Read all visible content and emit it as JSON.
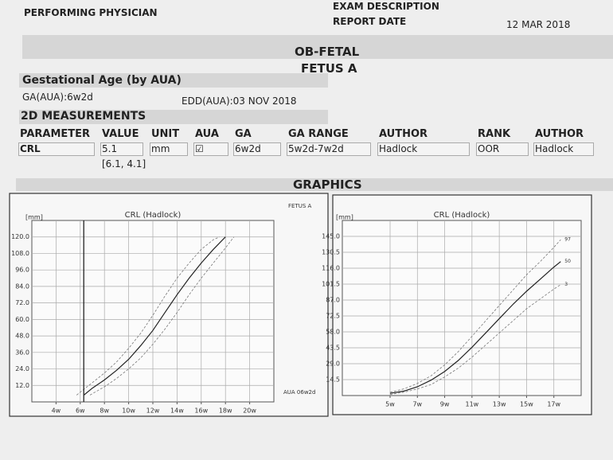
{
  "header": {
    "physician": "PERFORMING PHYSICIAN",
    "exam": "EXAM DESCRIPTION",
    "report_date_label": "REPORT DATE",
    "report_date": "12 MAR 2018"
  },
  "exam": {
    "title": "OB-FETAL",
    "fetus": "FETUS A"
  },
  "ga": {
    "heading": "Gestational Age (by AUA)",
    "ga": "GA(AUA):6w2d",
    "edd": "EDD(AUA):03 NOV 2018"
  },
  "measurements": {
    "heading": "2D MEASUREMENTS",
    "columns": [
      "PARAMETER",
      "VALUE",
      "UNIT",
      "AUA",
      "GA",
      "GA RANGE",
      "AUTHOR",
      "RANK",
      "AUTHOR"
    ],
    "rows": [
      [
        "CRL",
        "5.1",
        "mm",
        "☑",
        "6w2d",
        "5w2d-7w2d",
        "Hadlock",
        "OOR",
        "Hadlock"
      ]
    ],
    "range": "[6.1, 4.1]"
  },
  "graphics": {
    "title": "GRAPHICS"
  },
  "chart_data": [
    {
      "type": "line",
      "title": "CRL (Hadlock)",
      "y_label": "[mm]",
      "grid": true,
      "annotations": [
        "FETUS A",
        "AUA 06w2d"
      ],
      "aua_x": 6.29,
      "xlim": [
        2,
        22
      ],
      "ylim": [
        0,
        132
      ],
      "xticks": [
        {
          "value": 4,
          "label": "4w"
        },
        {
          "value": 6,
          "label": "6w"
        },
        {
          "value": 8,
          "label": "8w"
        },
        {
          "value": 10,
          "label": "10w"
        },
        {
          "value": 12,
          "label": "12w"
        },
        {
          "value": 14,
          "label": "14w"
        },
        {
          "value": 16,
          "label": "16w"
        },
        {
          "value": 18,
          "label": "18w"
        },
        {
          "value": 20,
          "label": "20w"
        }
      ],
      "yticks": [
        {
          "value": 12,
          "label": "12.0"
        },
        {
          "value": 24,
          "label": "24.0"
        },
        {
          "value": 36,
          "label": "36.0"
        },
        {
          "value": 48,
          "label": "48.0"
        },
        {
          "value": 60,
          "label": "60.0"
        },
        {
          "value": 72,
          "label": "72.0"
        },
        {
          "value": 84,
          "label": "84.0"
        },
        {
          "value": 96,
          "label": "96.0"
        },
        {
          "value": 108,
          "label": "108.0"
        },
        {
          "value": 120,
          "label": "120.0"
        }
      ],
      "series": [
        {
          "color": "#222222",
          "dash": false,
          "x": [
            6.3,
            7,
            8,
            9,
            10,
            11,
            12,
            13,
            14,
            15,
            16,
            17,
            18
          ],
          "values": [
            5,
            10,
            16,
            23,
            31,
            41,
            52,
            65,
            78,
            90,
            101,
            111,
            120
          ]
        },
        {
          "color": "#777777",
          "dash": true,
          "x": [
            5.7,
            7,
            8,
            9,
            10,
            11,
            12,
            13,
            14,
            15,
            16,
            17,
            17.5
          ],
          "values": [
            5,
            14,
            21,
            29,
            39,
            50,
            63,
            77,
            90,
            101,
            111,
            118,
            120
          ]
        },
        {
          "color": "#777777",
          "dash": true,
          "x": [
            6.8,
            8,
            9,
            10,
            11,
            12,
            13,
            14,
            15,
            16,
            17,
            18,
            18.7
          ],
          "values": [
            5,
            11,
            17,
            24,
            32,
            42,
            53,
            65,
            78,
            90,
            101,
            112,
            120
          ]
        }
      ]
    },
    {
      "type": "line",
      "title": "CRL (Hadlock)",
      "y_label": "[mm]",
      "grid": true,
      "xlim": [
        1.5,
        19
      ],
      "ylim": [
        0,
        159.5
      ],
      "xticks": [
        {
          "value": 5,
          "label": "5w"
        },
        {
          "value": 7,
          "label": "7w"
        },
        {
          "value": 9,
          "label": "9w"
        },
        {
          "value": 11,
          "label": "11w"
        },
        {
          "value": 13,
          "label": "13w"
        },
        {
          "value": 15,
          "label": "15w"
        },
        {
          "value": 17,
          "label": "17w"
        }
      ],
      "yticks": [
        14.5,
        {
          "value": 29,
          "label": "29.0"
        },
        43.5,
        {
          "value": 58,
          "label": "58.0"
        },
        72.5,
        {
          "value": 87,
          "label": "87.0"
        },
        101.5,
        {
          "value": 116,
          "label": "116.0"
        },
        130.5,
        {
          "value": 145,
          "label": "145.0"
        }
      ],
      "series": [
        {
          "name": "97",
          "color": "#777777",
          "dash": true,
          "x": [
            5,
            6,
            7,
            8,
            9,
            10,
            11,
            12,
            13,
            14,
            15,
            16,
            17,
            17.5
          ],
          "values": [
            3,
            6,
            11,
            18,
            28,
            40,
            54,
            68,
            82,
            96,
            110,
            122,
            135,
            142
          ]
        },
        {
          "name": "50",
          "color": "#222222",
          "dash": false,
          "x": [
            5,
            6,
            7,
            8,
            9,
            10,
            11,
            12,
            13,
            14,
            15,
            16,
            17,
            17.5
          ],
          "values": [
            2,
            4,
            8,
            14,
            22,
            32,
            44,
            57,
            70,
            83,
            95,
            106,
            117,
            122
          ]
        },
        {
          "name": "3",
          "color": "#777777",
          "dash": true,
          "x": [
            5,
            6,
            7,
            8,
            9,
            10,
            11,
            12,
            13,
            14,
            15,
            16,
            17,
            17.5
          ],
          "values": [
            1,
            3,
            6,
            10,
            17,
            25,
            35,
            46,
            57,
            68,
            79,
            88,
            97,
            101
          ]
        }
      ]
    }
  ]
}
